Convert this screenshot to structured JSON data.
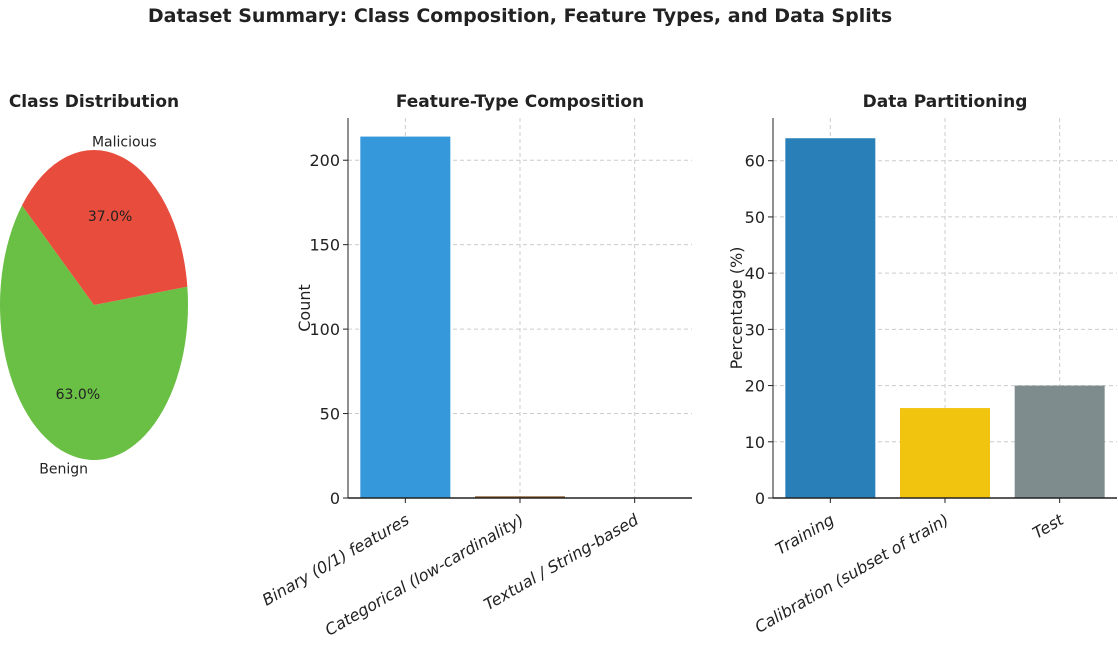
{
  "title": "Dataset Summary: Class Composition, Feature Types, and Data Splits",
  "chart_data": [
    {
      "type": "pie",
      "title": "Class Distribution",
      "labels": [
        "Benign",
        "Malicious"
      ],
      "values": [
        63.0,
        37.0
      ],
      "autopct": [
        "63.0%",
        "37.0%"
      ],
      "colors": [
        "#6abf45",
        "#e74c3c"
      ],
      "startangle": 140
    },
    {
      "type": "bar",
      "title": "Feature-Type Composition",
      "categories": [
        "Binary (0/1) features",
        "Categorical (low-cardinality)",
        "Textual / String-based"
      ],
      "values": [
        214,
        1,
        0
      ],
      "colors": [
        "#3498db",
        "#8b5a2b",
        "#9b59b6"
      ],
      "ylabel": "Count",
      "xlabel": "",
      "ylim": [
        0,
        225
      ],
      "yticks": [
        "0",
        "50",
        "100",
        "150",
        "200"
      ],
      "grid": true
    },
    {
      "type": "bar",
      "title": "Data Partitioning",
      "categories": [
        "Training",
        "Calibration (subset of train)",
        "Test"
      ],
      "values": [
        64,
        16,
        20
      ],
      "colors": [
        "#2980b9",
        "#f1c40f",
        "#7f8c8d"
      ],
      "ylabel": "Percentage (%)",
      "xlabel": "",
      "ylim": [
        0,
        67.6
      ],
      "yticks": [
        "0",
        "10",
        "20",
        "30",
        "40",
        "50",
        "60"
      ],
      "grid": true
    }
  ]
}
